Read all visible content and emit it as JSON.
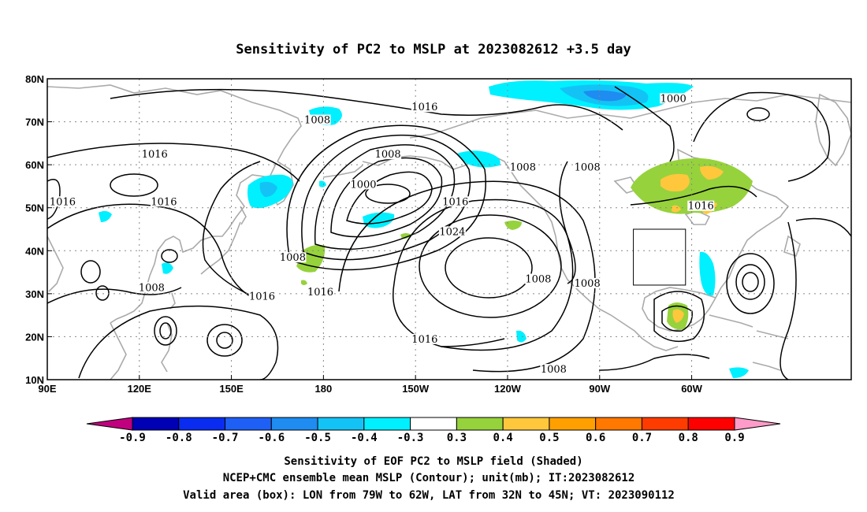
{
  "title": "Sensitivity of PC2 to MSLP at 2023082612 +3.5 day",
  "map": {
    "lon_labels": [
      "90E",
      "120E",
      "150E",
      "180",
      "150W",
      "120W",
      "90W",
      "60W"
    ],
    "lat_labels": [
      "80N",
      "70N",
      "60N",
      "50N",
      "40N",
      "30N",
      "20N",
      "10N"
    ],
    "grid": true,
    "contour_labels": [
      {
        "text": "1008",
        "lon": 178,
        "lat": 70
      },
      {
        "text": "1016",
        "lon": 213,
        "lat": 73
      },
      {
        "text": "1000",
        "lon": 294,
        "lat": 75
      },
      {
        "text": "1016",
        "lon": 125,
        "lat": 62
      },
      {
        "text": "1008",
        "lon": 201,
        "lat": 62
      },
      {
        "text": "1000",
        "lon": 193,
        "lat": 55
      },
      {
        "text": "1008",
        "lon": 245,
        "lat": 59
      },
      {
        "text": "1008",
        "lon": 266,
        "lat": 59
      },
      {
        "text": "1016",
        "lon": 95,
        "lat": 51
      },
      {
        "text": "1016",
        "lon": 128,
        "lat": 51
      },
      {
        "text": "1016",
        "lon": 223,
        "lat": 51
      },
      {
        "text": "1016",
        "lon": 303,
        "lat": 50
      },
      {
        "text": "1024",
        "lon": 222,
        "lat": 44
      },
      {
        "text": "1008",
        "lon": 170,
        "lat": 38
      },
      {
        "text": "1008",
        "lon": 250,
        "lat": 33
      },
      {
        "text": "1008",
        "lon": 124,
        "lat": 31
      },
      {
        "text": "1016",
        "lon": 160,
        "lat": 29
      },
      {
        "text": "1016",
        "lon": 179,
        "lat": 30
      },
      {
        "text": "1008",
        "lon": 266,
        "lat": 32
      },
      {
        "text": "1016",
        "lon": 213,
        "lat": 19
      },
      {
        "text": "1008",
        "lon": 255,
        "lat": 12
      }
    ],
    "box": {
      "lon_min": -79,
      "lon_max": -62,
      "lat_min": 32,
      "lat_max": 45
    }
  },
  "colorbar": {
    "labels": [
      "-0.9",
      "-0.8",
      "-0.7",
      "-0.6",
      "-0.5",
      "-0.4",
      "-0.3",
      "0.3",
      "0.4",
      "0.5",
      "0.6",
      "0.7",
      "0.8",
      "0.9"
    ],
    "colors": [
      "#c1007f",
      "#0000b4",
      "#0a2cf0",
      "#1e5ff5",
      "#1e8cf0",
      "#14c3f5",
      "#00f0ff",
      "#ffffff",
      "#96d23c",
      "#ffc83c",
      "#ffa000",
      "#ff7800",
      "#ff3c00",
      "#ff0000",
      "#ff9bc8"
    ]
  },
  "footer": [
    "Sensitivity of EOF PC2 to MSLP field (Shaded)",
    "NCEP+CMC ensemble mean MSLP (Contour); unit(mb); IT:2023082612",
    "Valid area (box): LON from 79W to 62W, LAT from 32N to 45N; VT: 2023090112"
  ]
}
